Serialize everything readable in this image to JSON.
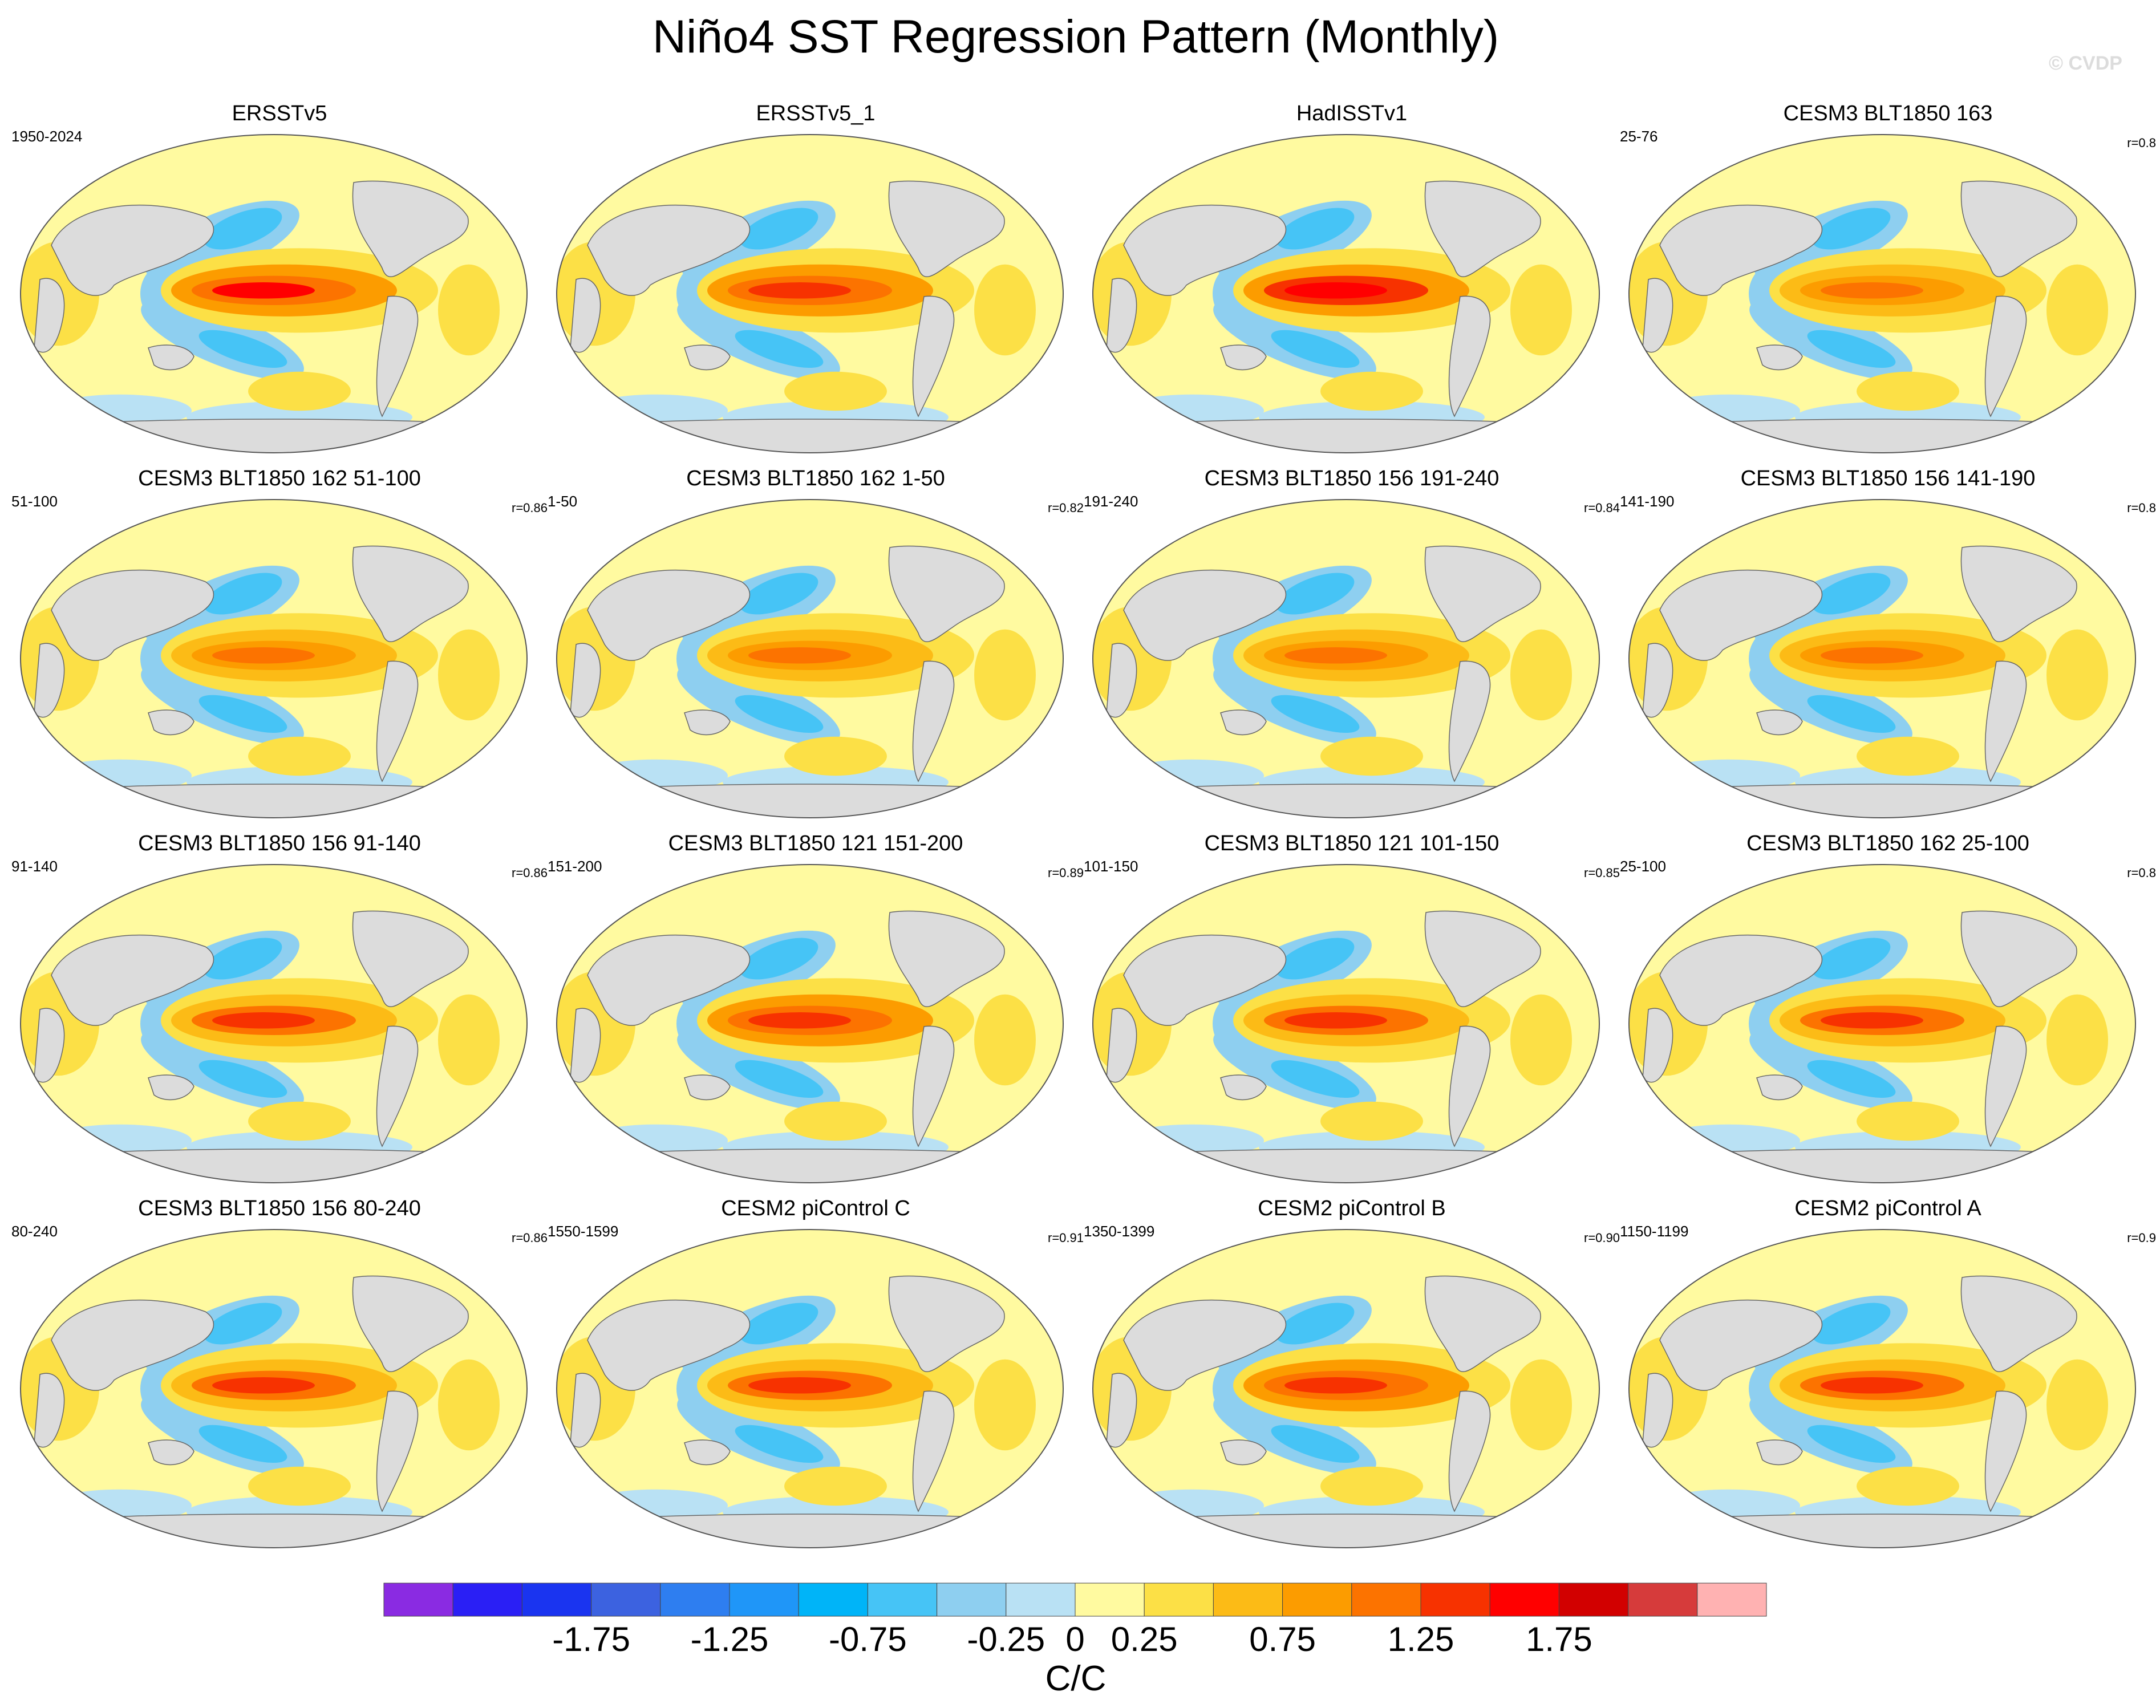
{
  "title": "Niño4 SST Regression Pattern (Monthly)",
  "copyright": "© CVDP",
  "chart_data": {
    "type": "map",
    "projection": "Robinson (global, Pacific-centred)",
    "variable": "SST regression onto Niño4 index",
    "units": "C/C",
    "colorbar": {
      "levels": [
        -2.25,
        -2.0,
        -1.75,
        -1.5,
        -1.25,
        -1.0,
        -0.75,
        -0.5,
        -0.25,
        0,
        0.25,
        0.5,
        0.75,
        1.0,
        1.25,
        1.5,
        1.75,
        2.0,
        2.25
      ],
      "tick_labels": [
        "-1.75",
        "-1.25",
        "-0.75",
        "-0.25",
        "0",
        "0.25",
        "0.75",
        "1.25",
        "1.75"
      ],
      "tick_values": [
        -1.75,
        -1.25,
        -0.75,
        -0.25,
        0,
        0.25,
        0.75,
        1.25,
        1.75
      ],
      "colors": [
        "#8a2be2",
        "#2a1ff5",
        "#1a34f0",
        "#3c62e0",
        "#2e7ef0",
        "#1f96f8",
        "#00b4f8",
        "#46c4f6",
        "#8ecff0",
        "#b9e1f4",
        "#fffaa0",
        "#fce046",
        "#fcbb16",
        "#fc9c00",
        "#fc7300",
        "#f73200",
        "#ff0000",
        "#d20000",
        "#d63b3b",
        "#ffb2b2"
      ]
    },
    "panels": [
      {
        "title": "ERSSTv5",
        "left": "1950-2024",
        "right": "",
        "peak": 1.55
      },
      {
        "title": "ERSSTv5_1",
        "left": "",
        "right": "",
        "peak": 1.45
      },
      {
        "title": "HadISSTv1",
        "left": "",
        "right": "",
        "peak": 1.6
      },
      {
        "title": "CESM3 BLT1850 163",
        "left": "25-76",
        "right": "r=0.8",
        "peak": 1.2
      },
      {
        "title": "CESM3 BLT1850 162 51-100",
        "left": "51-100",
        "right": "r=0.86",
        "peak": 1.2
      },
      {
        "title": "CESM3 BLT1850 162 1-50",
        "left": "1-50",
        "right": "r=0.82",
        "peak": 1.2
      },
      {
        "title": "CESM3 BLT1850 156 191-240",
        "left": "191-240",
        "right": "r=0.84",
        "peak": 1.2
      },
      {
        "title": "CESM3 BLT1850 156 141-190",
        "left": "141-190",
        "right": "r=0.8",
        "peak": 1.1
      },
      {
        "title": "CESM3 BLT1850 156 91-140",
        "left": "91-140",
        "right": "r=0.86",
        "peak": 1.3
      },
      {
        "title": "CESM3 BLT1850 121 151-200",
        "left": "151-200",
        "right": "r=0.89",
        "peak": 1.4
      },
      {
        "title": "CESM3 BLT1850 121 101-150",
        "left": "101-150",
        "right": "r=0.85",
        "peak": 1.3
      },
      {
        "title": "CESM3 BLT1850 162 25-100",
        "left": "25-100",
        "right": "r=0.8",
        "peak": 1.25
      },
      {
        "title": "CESM3 BLT1850 156 80-240",
        "left": "80-240",
        "right": "r=0.86",
        "peak": 1.35
      },
      {
        "title": "CESM2 piControl C",
        "left": "1550-1599",
        "right": "r=0.91",
        "peak": 1.3
      },
      {
        "title": "CESM2 piControl B",
        "left": "1350-1399",
        "right": "r=0.90",
        "peak": 1.45
      },
      {
        "title": "CESM2 piControl A",
        "left": "1150-1199",
        "right": "r=0.9",
        "peak": 1.35
      }
    ]
  }
}
